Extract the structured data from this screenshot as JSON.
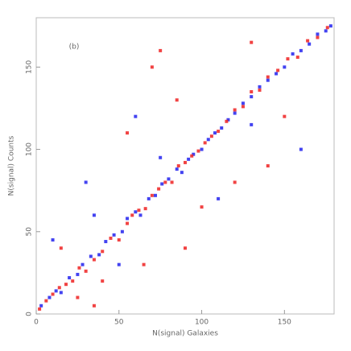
{
  "chart_data": {
    "type": "scatter",
    "annotation": "(b)",
    "x_label": "N(signal) Galaxies",
    "y_label": "N(signal) Counts",
    "xlim": [
      0,
      180
    ],
    "ylim": [
      0,
      180
    ],
    "xticks": [
      0,
      50,
      100,
      150
    ],
    "yticks": [
      0,
      50,
      100,
      150
    ],
    "series": [
      {
        "color": "#2222ee",
        "x": [
          3,
          8,
          12,
          15,
          20,
          25,
          28,
          33,
          38,
          42,
          47,
          52,
          55,
          60,
          63,
          68,
          72,
          76,
          80,
          85,
          88,
          92,
          95,
          100,
          104,
          108,
          112,
          116,
          120,
          125,
          130,
          135,
          140,
          145,
          150,
          155,
          160,
          165,
          170,
          175,
          178,
          10,
          30,
          50,
          75,
          110,
          130,
          160,
          35,
          60
        ],
        "y": [
          5,
          10,
          14,
          13,
          22,
          24,
          30,
          35,
          36,
          44,
          48,
          50,
          58,
          62,
          60,
          70,
          72,
          79,
          82,
          88,
          86,
          94,
          97,
          100,
          106,
          110,
          113,
          118,
          122,
          128,
          132,
          138,
          142,
          146,
          150,
          158,
          160,
          164,
          170,
          172,
          175,
          45,
          80,
          30,
          95,
          70,
          115,
          100,
          60,
          120
        ]
      },
      {
        "color": "#ee2222",
        "x": [
          2,
          6,
          10,
          14,
          18,
          22,
          26,
          30,
          35,
          40,
          45,
          50,
          55,
          58,
          62,
          66,
          70,
          74,
          78,
          82,
          86,
          90,
          94,
          98,
          102,
          106,
          110,
          115,
          120,
          125,
          130,
          135,
          140,
          146,
          152,
          158,
          164,
          170,
          176,
          15,
          25,
          40,
          55,
          70,
          90,
          65,
          75,
          120,
          140,
          150,
          35,
          85,
          100,
          130
        ],
        "y": [
          3,
          8,
          12,
          16,
          18,
          20,
          28,
          26,
          33,
          38,
          46,
          45,
          55,
          60,
          63,
          64,
          72,
          76,
          80,
          80,
          90,
          92,
          96,
          99,
          104,
          108,
          111,
          117,
          124,
          126,
          135,
          136,
          144,
          148,
          155,
          156,
          166,
          168,
          174,
          40,
          10,
          20,
          110,
          150,
          40,
          30,
          160,
          80,
          90,
          120,
          5,
          130,
          65,
          165
        ]
      }
    ]
  }
}
